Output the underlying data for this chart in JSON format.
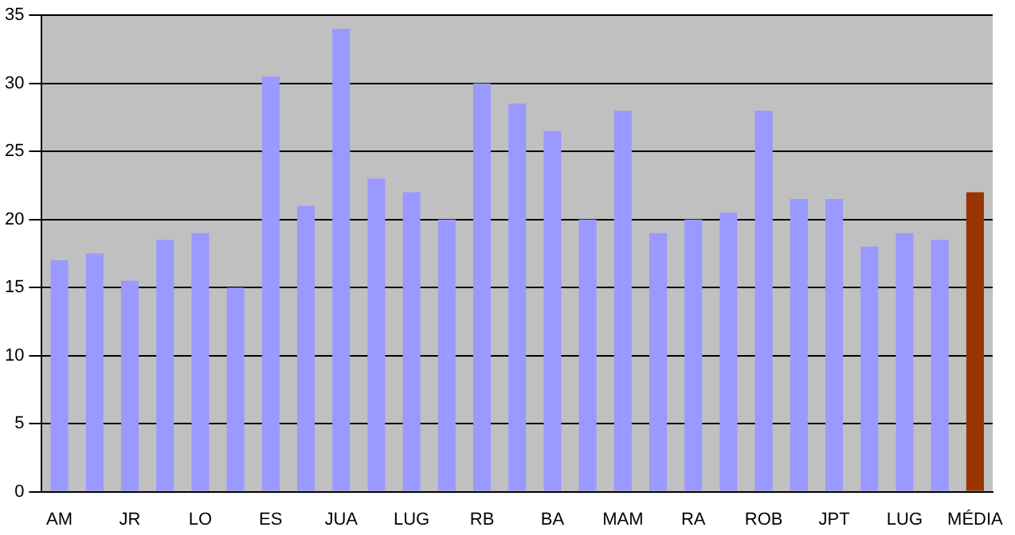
{
  "chart_data": {
    "type": "bar",
    "categories": [
      "AM",
      null,
      "JR",
      null,
      "LO",
      null,
      "ES",
      null,
      "JUA",
      null,
      "LUG",
      null,
      "RB",
      null,
      "BA",
      null,
      "MAM",
      null,
      "RA",
      null,
      "ROB",
      null,
      "JPT",
      null,
      "LUG",
      null,
      "MÉDIA"
    ],
    "values": [
      17,
      17.5,
      15.5,
      18.5,
      19,
      15,
      30.5,
      21,
      34,
      23,
      22,
      20,
      30,
      28.5,
      26.5,
      20,
      28,
      19,
      20,
      20.5,
      28,
      21.5,
      21.5,
      18,
      19,
      18.5,
      22
    ],
    "colors": [
      "#9999ff",
      "#9999ff",
      "#9999ff",
      "#9999ff",
      "#9999ff",
      "#9999ff",
      "#9999ff",
      "#9999ff",
      "#9999ff",
      "#9999ff",
      "#9999ff",
      "#9999ff",
      "#9999ff",
      "#9999ff",
      "#9999ff",
      "#9999ff",
      "#9999ff",
      "#9999ff",
      "#9999ff",
      "#9999ff",
      "#9999ff",
      "#9999ff",
      "#9999ff",
      "#9999ff",
      "#9999ff",
      "#9999ff",
      "#993300"
    ],
    "ylim": [
      0,
      35
    ],
    "yticks": [
      0,
      5,
      10,
      15,
      20,
      25,
      30,
      35
    ],
    "grid": "y",
    "legend": false
  }
}
